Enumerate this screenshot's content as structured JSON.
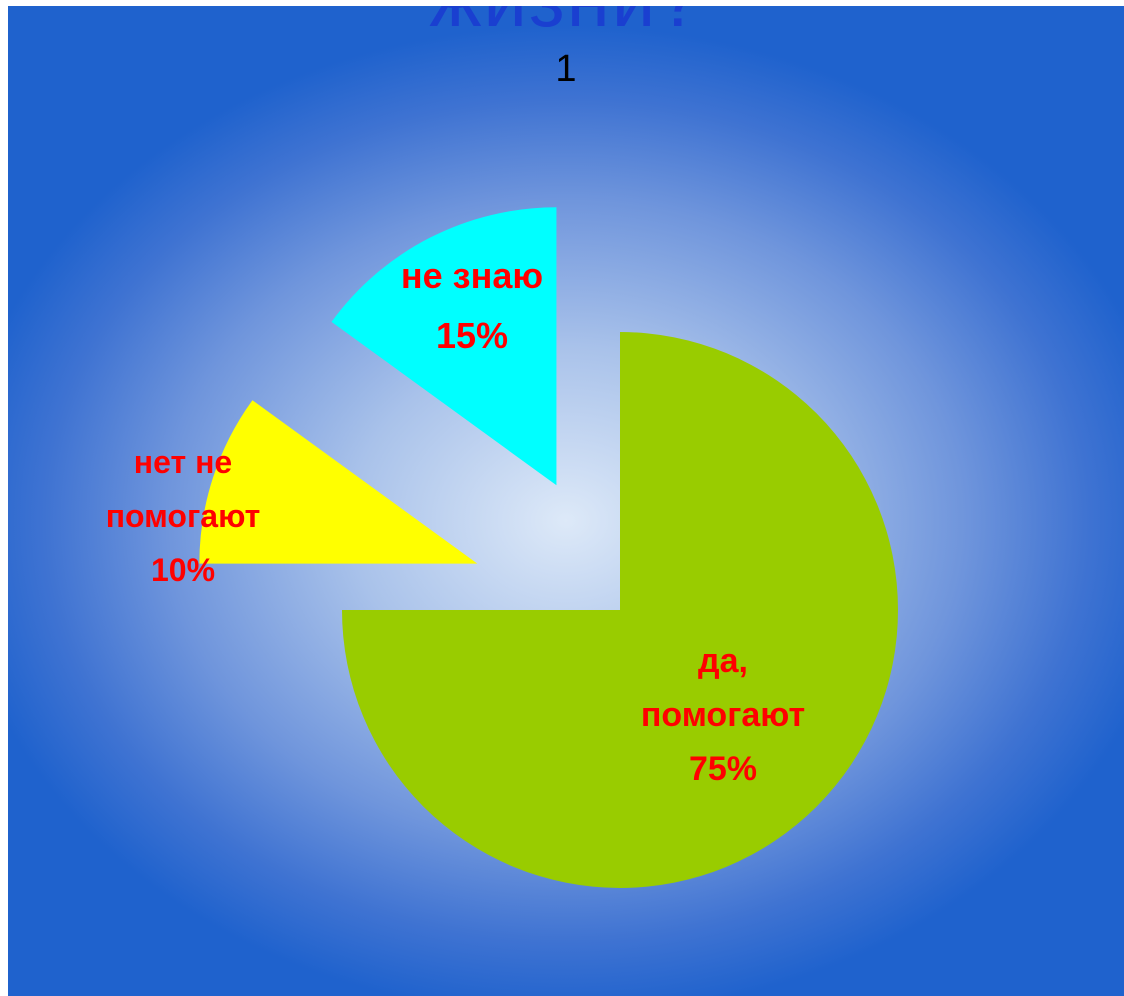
{
  "heading_clipped": "жизни?",
  "chart_data": {
    "type": "pie",
    "title": "1",
    "start_angle_deg": 0,
    "direction": "clockwise",
    "slices": [
      {
        "name": "да, помогают",
        "label_lines": [
          "да,",
          "помогают",
          "75%"
        ],
        "value": 75,
        "percent": "75%",
        "color": "#99cc00",
        "exploded": false
      },
      {
        "name": "нет не помогают",
        "label_lines": [
          "нет не",
          "помогают",
          "10%"
        ],
        "value": 10,
        "percent": "10%",
        "color": "#ffff00",
        "exploded": true
      },
      {
        "name": "не знаю",
        "label_lines": [
          "не знаю",
          "15%"
        ],
        "value": 15,
        "percent": "15%",
        "color": "#00ffff",
        "exploded": true
      }
    ],
    "label_color": "#ff0000",
    "legend": "none"
  }
}
